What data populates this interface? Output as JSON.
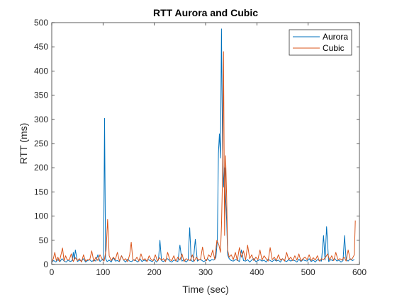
{
  "chart_data": {
    "type": "line",
    "title": "RTT Aurora and Cubic",
    "xlabel": "Time (sec)",
    "ylabel": "RTT (ms)",
    "xlim": [
      0,
      600
    ],
    "ylim": [
      0,
      500
    ],
    "xticks": [
      0,
      100,
      200,
      300,
      400,
      500,
      600
    ],
    "yticks": [
      0,
      50,
      100,
      150,
      200,
      250,
      300,
      350,
      400,
      450,
      500
    ],
    "grid": false,
    "legend_position": "top-right",
    "series": [
      {
        "name": "Aurora",
        "color": "#0072BD",
        "x": [
          0,
          4,
          8,
          12,
          16,
          20,
          24,
          28,
          32,
          36,
          40,
          42,
          44,
          46,
          50,
          54,
          58,
          62,
          66,
          70,
          74,
          78,
          82,
          86,
          90,
          94,
          98,
          101,
          103,
          105,
          108,
          112,
          116,
          120,
          124,
          128,
          132,
          136,
          140,
          144,
          148,
          152,
          156,
          160,
          164,
          168,
          172,
          176,
          180,
          184,
          188,
          192,
          196,
          200,
          204,
          208,
          211,
          214,
          218,
          222,
          226,
          230,
          234,
          238,
          242,
          246,
          250,
          254,
          258,
          262,
          266,
          269,
          272,
          276,
          280,
          284,
          288,
          292,
          296,
          300,
          304,
          308,
          312,
          316,
          320,
          323,
          325,
          327,
          329,
          331,
          333,
          335,
          337,
          339,
          341,
          343,
          346,
          350,
          354,
          358,
          362,
          366,
          370,
          374,
          378,
          382,
          386,
          390,
          394,
          398,
          402,
          406,
          410,
          414,
          418,
          422,
          426,
          430,
          434,
          438,
          442,
          446,
          450,
          454,
          458,
          462,
          466,
          470,
          474,
          478,
          482,
          486,
          490,
          494,
          498,
          502,
          506,
          510,
          514,
          518,
          522,
          526,
          530,
          533,
          536,
          540,
          544,
          548,
          552,
          556,
          560,
          564,
          568,
          571,
          574,
          578,
          582,
          586,
          590
        ],
        "values": [
          6,
          8,
          5,
          10,
          6,
          12,
          7,
          5,
          9,
          6,
          8,
          25,
          10,
          30,
          6,
          9,
          7,
          12,
          5,
          8,
          10,
          6,
          9,
          7,
          20,
          6,
          10,
          8,
          302,
          12,
          6,
          9,
          5,
          14,
          7,
          8,
          6,
          18,
          9,
          5,
          11,
          7,
          6,
          10,
          8,
          5,
          12,
          6,
          9,
          7,
          10,
          8,
          6,
          11,
          5,
          9,
          50,
          8,
          6,
          10,
          12,
          7,
          5,
          9,
          8,
          6,
          40,
          7,
          10,
          5,
          9,
          76,
          8,
          6,
          52,
          7,
          10,
          9,
          6,
          8,
          12,
          7,
          10,
          9,
          14,
          50,
          230,
          270,
          220,
          487,
          240,
          160,
          200,
          140,
          90,
          20,
          12,
          8,
          7,
          10,
          9,
          6,
          30,
          8,
          7,
          10,
          5,
          9,
          12,
          6,
          8,
          10,
          7,
          9,
          5,
          11,
          8,
          6,
          10,
          7,
          9,
          5,
          12,
          8,
          6,
          10,
          7,
          9,
          8,
          5,
          11,
          6,
          10,
          8,
          7,
          12,
          6,
          9,
          5,
          10,
          8,
          7,
          60,
          9,
          78,
          6,
          10,
          8,
          12,
          7,
          9,
          5,
          8,
          60,
          10,
          7,
          12,
          8,
          10
        ]
      },
      {
        "name": "Cubic",
        "color": "#D95319",
        "x": [
          0,
          3,
          6,
          9,
          12,
          15,
          18,
          21,
          24,
          27,
          30,
          34,
          38,
          42,
          46,
          50,
          54,
          58,
          62,
          66,
          70,
          74,
          78,
          82,
          86,
          90,
          94,
          98,
          102,
          106,
          109,
          112,
          116,
          120,
          124,
          128,
          132,
          136,
          140,
          144,
          148,
          152,
          155,
          158,
          162,
          166,
          170,
          174,
          178,
          182,
          186,
          190,
          194,
          198,
          202,
          206,
          210,
          214,
          218,
          222,
          226,
          230,
          234,
          238,
          242,
          246,
          250,
          254,
          258,
          262,
          266,
          270,
          274,
          278,
          282,
          286,
          290,
          294,
          298,
          302,
          306,
          310,
          314,
          318,
          322,
          326,
          329,
          331,
          333,
          335,
          337,
          339,
          341,
          343,
          346,
          350,
          354,
          358,
          362,
          366,
          370,
          374,
          378,
          382,
          386,
          390,
          394,
          398,
          402,
          406,
          410,
          414,
          418,
          422,
          426,
          430,
          434,
          438,
          442,
          446,
          450,
          454,
          458,
          462,
          466,
          470,
          474,
          478,
          482,
          486,
          490,
          494,
          498,
          502,
          506,
          510,
          514,
          518,
          522,
          526,
          530,
          534,
          538,
          542,
          546,
          550,
          554,
          558,
          562,
          566,
          570,
          574,
          578,
          582,
          586,
          590,
          592
        ],
        "values": [
          5,
          12,
          25,
          8,
          15,
          6,
          20,
          34,
          7,
          18,
          10,
          9,
          22,
          6,
          14,
          8,
          12,
          5,
          20,
          7,
          10,
          9,
          28,
          6,
          15,
          8,
          20,
          12,
          7,
          30,
          93,
          18,
          8,
          15,
          10,
          25,
          7,
          18,
          9,
          12,
          6,
          20,
          46,
          10,
          8,
          15,
          7,
          22,
          9,
          12,
          6,
          18,
          10,
          8,
          20,
          7,
          14,
          9,
          12,
          6,
          25,
          10,
          8,
          18,
          7,
          15,
          9,
          22,
          6,
          12,
          10,
          8,
          20,
          7,
          15,
          9,
          10,
          36,
          12,
          8,
          20,
          15,
          30,
          10,
          50,
          40,
          25,
          80,
          180,
          440,
          60,
          225,
          140,
          30,
          15,
          20,
          10,
          25,
          8,
          35,
          15,
          28,
          9,
          40,
          12,
          20,
          8,
          15,
          10,
          30,
          9,
          18,
          12,
          7,
          35,
          10,
          15,
          8,
          20,
          9,
          12,
          7,
          25,
          10,
          15,
          8,
          18,
          9,
          22,
          7,
          12,
          15,
          10,
          20,
          8,
          14,
          9,
          18,
          7,
          12,
          10,
          15,
          22,
          9,
          18,
          8,
          25,
          10,
          12,
          9,
          15,
          7,
          30,
          10,
          12,
          20,
          91
        ]
      }
    ]
  }
}
